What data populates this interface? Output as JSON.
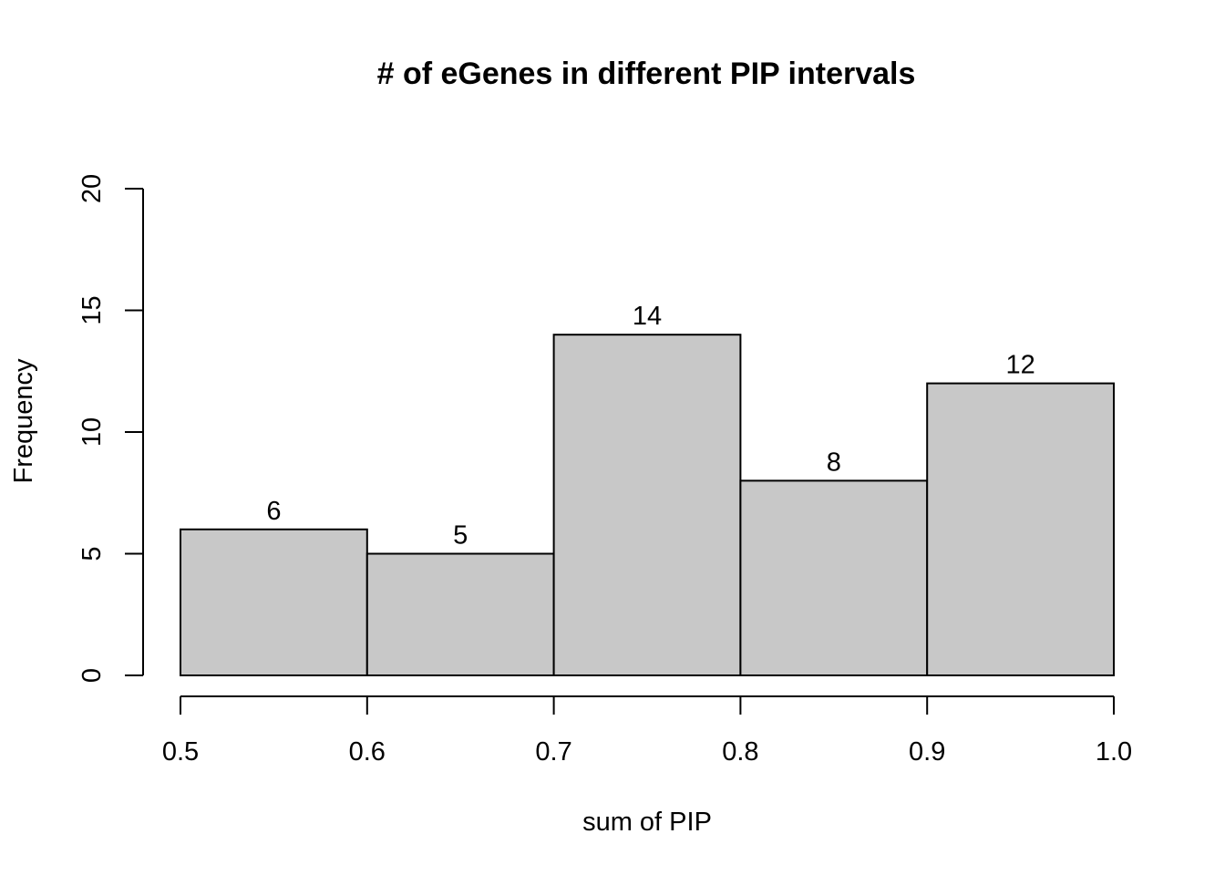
{
  "chart_data": {
    "type": "bar",
    "title": "# of eGenes in different PIP intervals",
    "xlabel": "sum of PIP",
    "ylabel": "Frequency",
    "bins": [
      {
        "from": 0.5,
        "to": 0.6,
        "value": 6,
        "label": "6"
      },
      {
        "from": 0.6,
        "to": 0.7,
        "value": 5,
        "label": "5"
      },
      {
        "from": 0.7,
        "to": 0.8,
        "value": 14,
        "label": "14"
      },
      {
        "from": 0.8,
        "to": 0.9,
        "value": 8,
        "label": "8"
      },
      {
        "from": 0.9,
        "to": 1.0,
        "value": 12,
        "label": "12"
      }
    ],
    "xlim": [
      0.5,
      1.0
    ],
    "ylim": [
      0,
      20
    ],
    "xticks": [
      {
        "value": 0.5,
        "label": "0.5"
      },
      {
        "value": 0.6,
        "label": "0.6"
      },
      {
        "value": 0.7,
        "label": "0.7"
      },
      {
        "value": 0.8,
        "label": "0.8"
      },
      {
        "value": 0.9,
        "label": "0.9"
      },
      {
        "value": 1.0,
        "label": "1.0"
      }
    ],
    "yticks": [
      {
        "value": 0,
        "label": "0"
      },
      {
        "value": 5,
        "label": "5"
      },
      {
        "value": 10,
        "label": "10"
      },
      {
        "value": 15,
        "label": "15"
      },
      {
        "value": 20,
        "label": "20"
      }
    ],
    "bar_color": "#c8c8c8",
    "grid": false,
    "legend": "none"
  }
}
